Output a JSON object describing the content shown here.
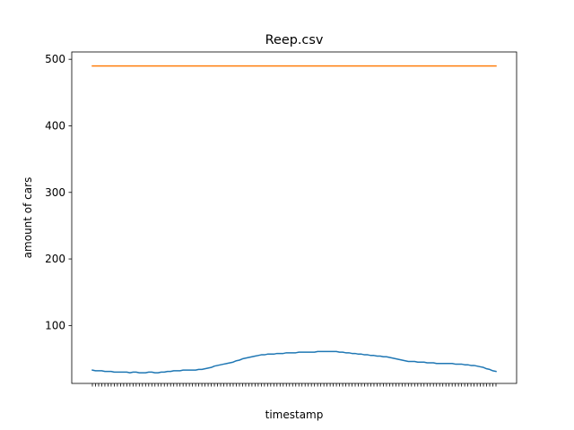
{
  "chart_data": {
    "type": "line",
    "title": "Reep.csv",
    "xlabel": "timestamp",
    "ylabel": "amount of cars",
    "ylim": [
      13,
      511
    ],
    "yticks": [
      100,
      200,
      300,
      400,
      500
    ],
    "x_tick_count": 130,
    "x_tick_labels_note": "",
    "grid": false,
    "series": [
      {
        "color": "#1f77b4",
        "values": [
          33,
          32,
          32,
          32,
          31,
          31,
          31,
          30,
          30,
          30,
          30,
          30,
          29,
          30,
          30,
          29,
          29,
          29,
          30,
          30,
          29,
          29,
          30,
          30,
          31,
          31,
          32,
          32,
          32,
          33,
          33,
          33,
          33,
          33,
          34,
          34,
          35,
          36,
          37,
          39,
          40,
          41,
          42,
          43,
          44,
          45,
          47,
          48,
          50,
          51,
          52,
          53,
          54,
          55,
          56,
          56,
          57,
          57,
          57,
          58,
          58,
          58,
          59,
          59,
          59,
          59,
          60,
          60,
          60,
          60,
          60,
          60,
          61,
          61,
          61,
          61,
          61,
          61,
          61,
          60,
          60,
          59,
          59,
          58,
          58,
          57,
          57,
          56,
          56,
          55,
          55,
          54,
          54,
          53,
          53,
          52,
          51,
          50,
          49,
          48,
          47,
          46,
          46,
          46,
          45,
          45,
          45,
          44,
          44,
          44,
          43,
          43,
          43,
          43,
          43,
          43,
          42,
          42,
          42,
          41,
          41,
          40,
          40,
          39,
          38,
          37,
          35,
          34,
          32,
          31
        ]
      },
      {
        "color": "#ff7f0e",
        "values": [
          490,
          490
        ]
      }
    ]
  }
}
